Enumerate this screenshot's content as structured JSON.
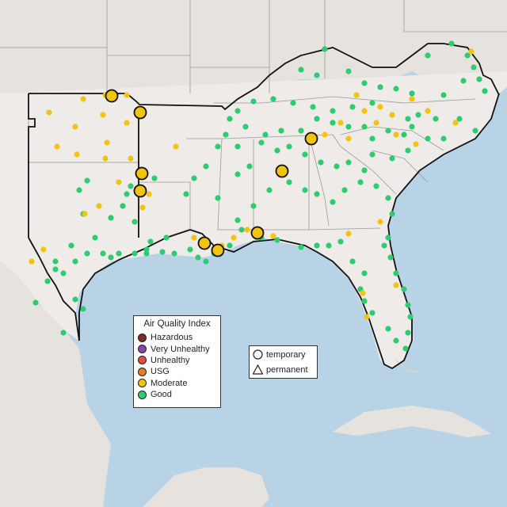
{
  "map": {
    "colors": {
      "water": "#b9d3e6",
      "land": "#eeebe8",
      "outside_land": "#e4e2df",
      "border": "#111111",
      "inner_border": "#9a9a9a",
      "good": "#2ecc71",
      "moderate": "#f1c40f",
      "usg": "#e67e22",
      "unhealthy": "#e74c3c",
      "very_unhealthy": "#8e44ad",
      "hazardous": "#7b2d26"
    }
  },
  "aqi_legend": {
    "title": "Air Quality Index",
    "items": [
      {
        "label": "Hazardous",
        "color": "#7b2d26"
      },
      {
        "label": "Very Unhealthy",
        "color": "#8e44ad"
      },
      {
        "label": "Unhealthy",
        "color": "#e74c3c"
      },
      {
        "label": "USG",
        "color": "#e67e22"
      },
      {
        "label": "Moderate",
        "color": "#f1c40f"
      },
      {
        "label": "Good",
        "color": "#2ecc71"
      }
    ]
  },
  "monitor_legend": {
    "items": [
      {
        "label": "temporary",
        "icon": "circle-icon"
      },
      {
        "label": "permanent",
        "icon": "triangle-icon"
      }
    ]
  }
}
